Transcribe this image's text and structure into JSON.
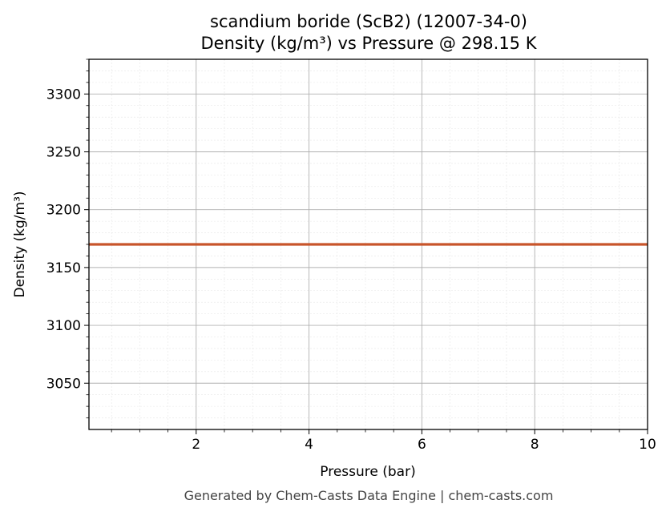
{
  "chart_data": {
    "type": "line",
    "title_line1": "scandium boride (ScB2) (12007-34-0)",
    "title_line2": "Density (kg/m³) vs Pressure @ 298.15 K",
    "xlabel": "Pressure (bar)",
    "ylabel": "Density (kg/m³)",
    "xlim": [
      0.1,
      10
    ],
    "ylim": [
      3010,
      3330
    ],
    "xticks": [
      2,
      4,
      6,
      8,
      10
    ],
    "yticks": [
      3050,
      3100,
      3150,
      3200,
      3250,
      3300
    ],
    "grid": true,
    "series": [
      {
        "color": "#c8552b",
        "x": [
          0.1,
          10
        ],
        "y": [
          3170,
          3170
        ]
      }
    ]
  },
  "footer": "Generated by Chem-Casts Data Engine | chem-casts.com"
}
